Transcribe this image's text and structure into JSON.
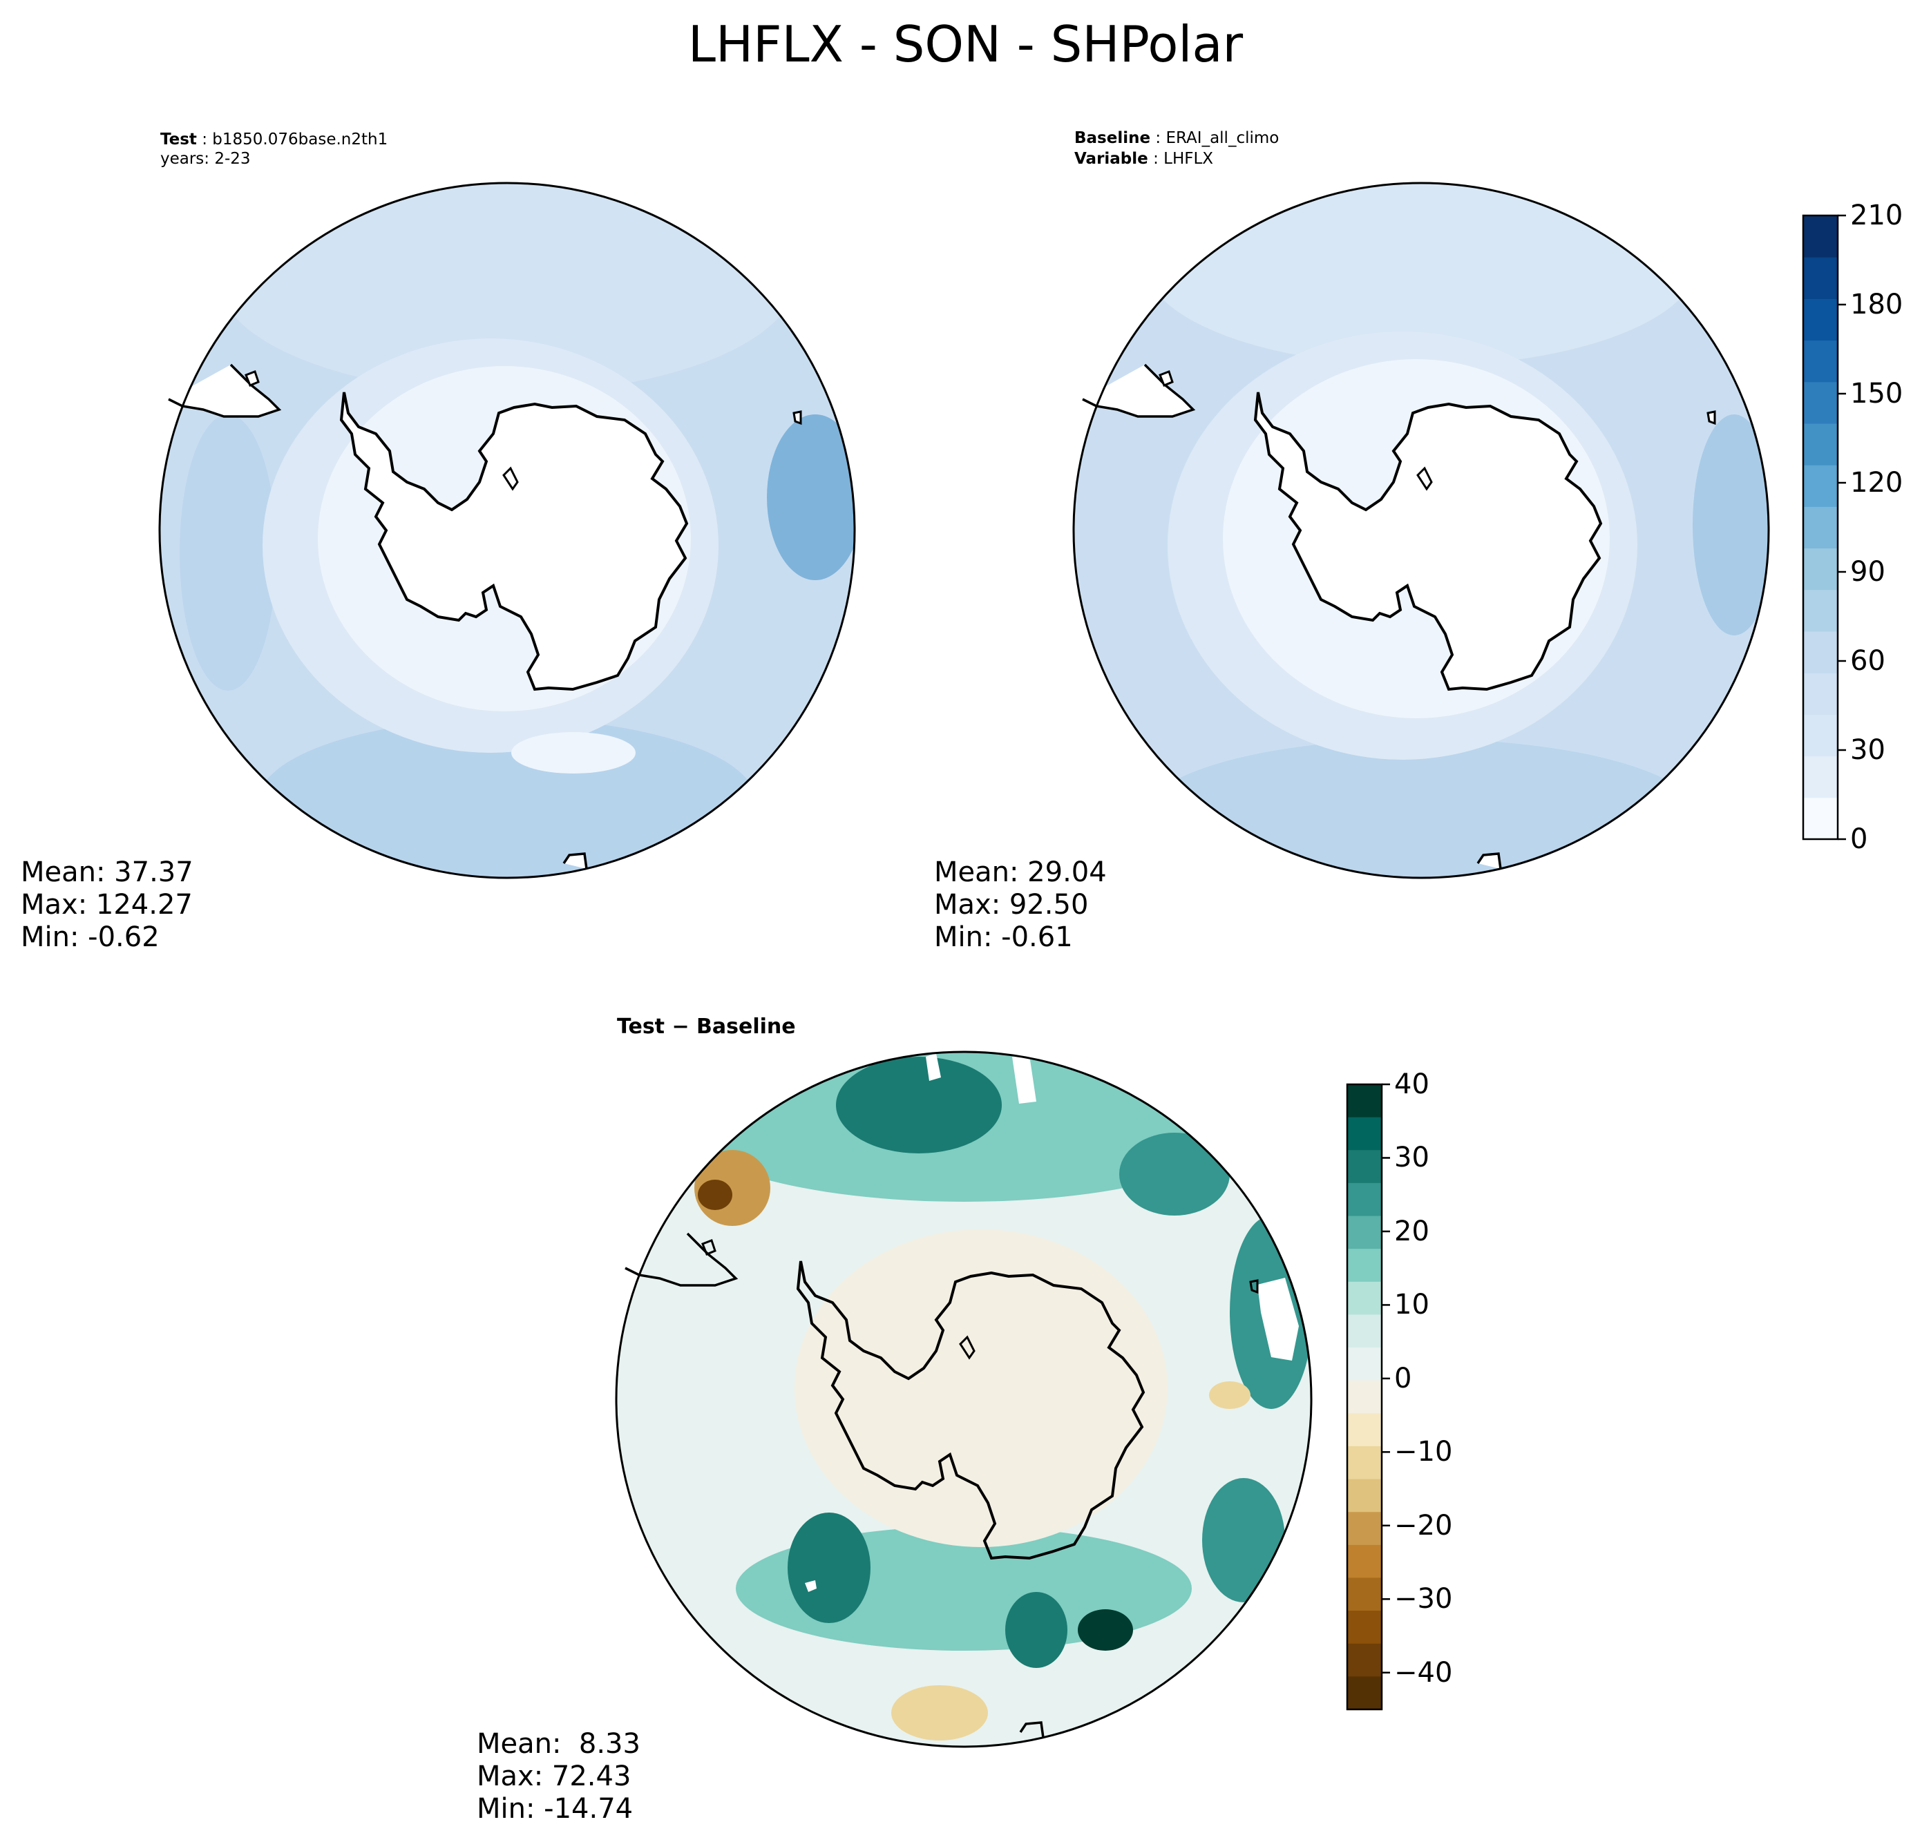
{
  "title": "LHFLX - SON - SHPolar",
  "panels": {
    "test": {
      "label_key": "Test",
      "label_value": "b1850.076base.n2th1",
      "years": "years: 2-23",
      "mean": "Mean: 37.37",
      "max": "Max: 124.27",
      "min": "Min: -0.62"
    },
    "baseline": {
      "label_key": "Baseline",
      "label_value": "ERAI_all_climo",
      "var_key": "Variable",
      "var_value": "LHFLX",
      "mean": "Mean: 29.04",
      "max": "Max: 92.50",
      "min": "Min: -0.61"
    },
    "diff": {
      "label": "Test − Baseline",
      "mean": "Mean:  8.33",
      "max": "Max: 72.43",
      "min": "Min: -14.74"
    }
  },
  "colorbars": {
    "field": {
      "ticks": [
        "0",
        "30",
        "60",
        "90",
        "120",
        "150",
        "180",
        "210"
      ],
      "levels": [
        0,
        210
      ],
      "colors": [
        "#f7fbff",
        "#e3eef9",
        "#d8e7f5",
        "#cfe1f2",
        "#c4daee",
        "#b0d2e8",
        "#9ac8e0",
        "#7db8da",
        "#5ea6d3",
        "#4292c6",
        "#2f7ebc",
        "#1b69af",
        "#0b559f",
        "#08458a",
        "#08306b"
      ]
    },
    "diff": {
      "ticks": [
        "40",
        "30",
        "20",
        "10",
        "0",
        "−10",
        "−20",
        "−30",
        "−40"
      ],
      "levels": [
        -45,
        40
      ],
      "colors": [
        "#003c30",
        "#01665e",
        "#1a7b72",
        "#35978f",
        "#5ab2a8",
        "#80cdc1",
        "#b4e2d9",
        "#d6ece8",
        "#e8f2f0",
        "#f3efe3",
        "#f6e8c3",
        "#ecd69c",
        "#dfc27d",
        "#c99a4d",
        "#bf812d",
        "#a66a1c",
        "#8c510a",
        "#6e3f08",
        "#543005"
      ]
    }
  },
  "chart_data": [
    {
      "type": "heatmap",
      "title": "Test: b1850.076base.n2th1",
      "projection": "south polar stereographic",
      "variable": "LHFLX",
      "colorbar_range": [
        0,
        210
      ],
      "stats": {
        "mean": 37.37,
        "max": 124.27,
        "min": -0.62
      }
    },
    {
      "type": "heatmap",
      "title": "Baseline: ERAI_all_climo",
      "projection": "south polar stereographic",
      "variable": "LHFLX",
      "colorbar_range": [
        0,
        210
      ],
      "stats": {
        "mean": 29.04,
        "max": 92.5,
        "min": -0.61
      }
    },
    {
      "type": "heatmap",
      "title": "Test − Baseline",
      "projection": "south polar stereographic",
      "variable": "LHFLX",
      "colorbar_range": [
        -45,
        40
      ],
      "stats": {
        "mean": 8.33,
        "max": 72.43,
        "min": -14.74
      }
    }
  ]
}
